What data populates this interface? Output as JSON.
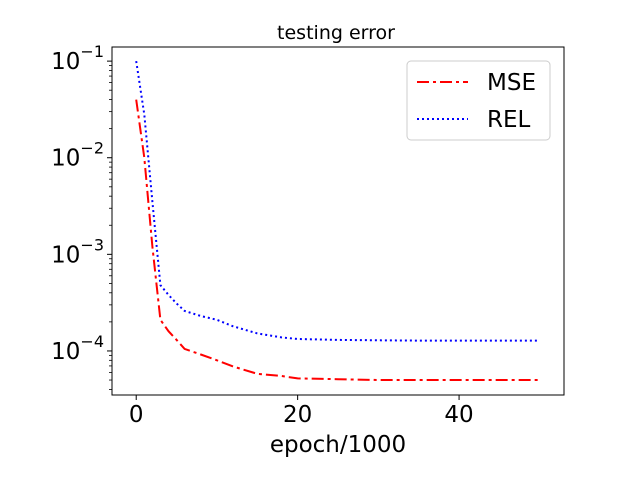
{
  "chart_data": {
    "type": "line",
    "title": "testing error",
    "xlabel": "epoch/1000",
    "ylabel": "",
    "xlim": [
      -3,
      53
    ],
    "ylim": [
      3.5e-05,
      0.14
    ],
    "yscale": "log",
    "grid": false,
    "legend_position": "top-right",
    "x_ticks": [
      {
        "value": 0,
        "label": "0"
      },
      {
        "value": 20,
        "label": "20"
      },
      {
        "value": 40,
        "label": "40"
      }
    ],
    "y_ticks": [
      {
        "value": 0.1,
        "base": "10",
        "exp": "−1"
      },
      {
        "value": 0.01,
        "base": "10",
        "exp": "−2"
      },
      {
        "value": 0.001,
        "base": "10",
        "exp": "−3"
      },
      {
        "value": 0.0001,
        "base": "10",
        "exp": "−4"
      }
    ],
    "series": [
      {
        "name": "MSE",
        "color": "#ff0000",
        "dash": "12,4,3,4",
        "x": [
          0,
          1,
          2,
          3,
          4,
          5,
          6,
          8,
          10,
          12,
          15,
          18,
          20,
          25,
          30,
          35,
          40,
          45,
          50
        ],
        "y": [
          0.04,
          0.01,
          0.0012,
          0.00021,
          0.00016,
          0.00013,
          0.000105,
          9.2e-05,
          8e-05,
          6.9e-05,
          5.8e-05,
          5.5e-05,
          5.2e-05,
          5.1e-05,
          5e-05,
          5e-05,
          5e-05,
          5e-05,
          5e-05
        ]
      },
      {
        "name": "REL",
        "color": "#0000ff",
        "dash": "2,3",
        "x": [
          0,
          1,
          2,
          3,
          4,
          5,
          6,
          8,
          10,
          12,
          15,
          18,
          20,
          25,
          30,
          35,
          40,
          45,
          50
        ],
        "y": [
          0.1,
          0.028,
          0.0035,
          0.00048,
          0.00038,
          0.00031,
          0.00026,
          0.00023,
          0.00021,
          0.00018,
          0.000152,
          0.000138,
          0.000133,
          0.00013,
          0.000129,
          0.000128,
          0.000128,
          0.000128,
          0.000128
        ]
      }
    ]
  }
}
